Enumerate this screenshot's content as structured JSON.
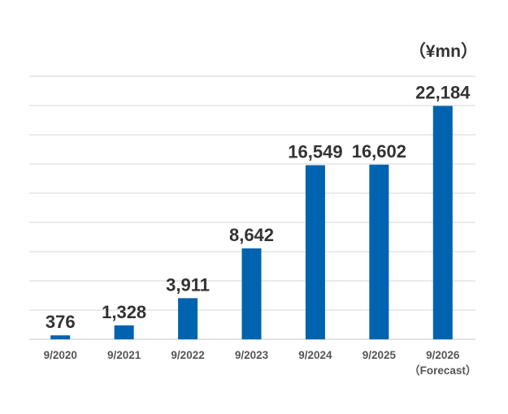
{
  "chart_data": {
    "type": "bar",
    "unit_label": "（¥mn）",
    "categories": [
      "9/2020",
      "9/2021",
      "9/2022",
      "9/2023",
      "9/2024",
      "9/2025",
      "9/2026"
    ],
    "category_sublabels": [
      "",
      "",
      "",
      "",
      "",
      "",
      "（Forecast）"
    ],
    "values": [
      376,
      1328,
      3911,
      8642,
      16549,
      16602,
      22184
    ],
    "value_labels": [
      "376",
      "1,328",
      "3,911",
      "8,642",
      "16,549",
      "16,602",
      "22,184"
    ],
    "title": "",
    "xlabel": "",
    "ylabel": "",
    "ylim": [
      0,
      25000
    ],
    "grid": true,
    "gridline_count": 9,
    "colors": {
      "bar": "#0063AF",
      "grid": "#E3E3E3",
      "text": "#333333",
      "axis_text": "#555555"
    }
  }
}
